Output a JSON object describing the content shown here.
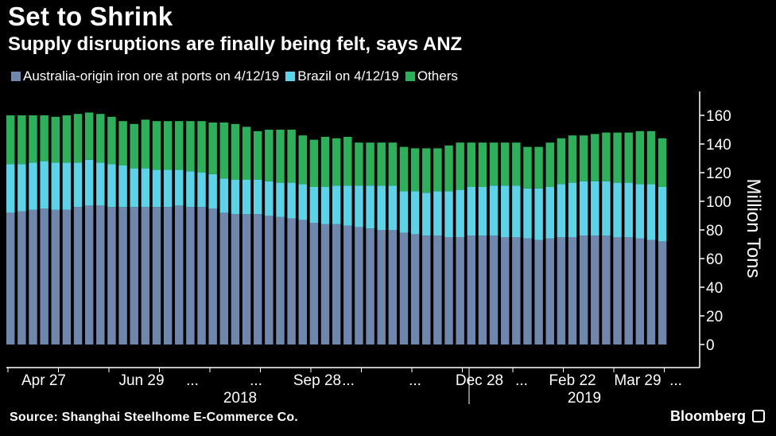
{
  "chart_data": {
    "type": "bar",
    "stacked": true,
    "title": "Set to Shrink",
    "subtitle": "Supply disruptions are finally being felt, says ANZ",
    "ylabel": "Million Tons",
    "ylim": [
      -15,
      170
    ],
    "yticks": [
      0,
      20,
      40,
      60,
      80,
      100,
      120,
      140,
      160
    ],
    "series": [
      {
        "name": "Australia-origin iron ore at ports on 4/12/19",
        "color": "#6f87ad",
        "values": [
          92,
          93,
          94,
          95,
          94,
          94,
          96,
          97,
          97,
          96,
          96,
          96,
          96,
          96,
          96,
          97,
          96,
          96,
          95,
          92,
          91,
          91,
          91,
          90,
          89,
          88,
          87,
          85,
          84,
          84,
          83,
          82,
          81,
          80,
          80,
          78,
          77,
          76,
          76,
          75,
          75,
          76,
          76,
          76,
          75,
          75,
          74,
          73,
          74,
          75,
          75,
          76,
          76,
          76,
          75,
          75,
          74,
          73,
          72
        ]
      },
      {
        "name": "Brazil on 4/12/19",
        "color": "#5bd3e8",
        "values": [
          34,
          33,
          33,
          33,
          33,
          33,
          31,
          32,
          30,
          30,
          29,
          27,
          27,
          26,
          26,
          25,
          25,
          24,
          24,
          24,
          24,
          24,
          24,
          24,
          24,
          25,
          25,
          25,
          26,
          27,
          28,
          29,
          30,
          31,
          31,
          29,
          30,
          30,
          31,
          32,
          33,
          34,
          34,
          35,
          36,
          36,
          35,
          36,
          36,
          37,
          38,
          38,
          38,
          38,
          38,
          38,
          38,
          39,
          38
        ]
      },
      {
        "name": "Others",
        "color": "#2db05a",
        "values": [
          34,
          34,
          33,
          32,
          32,
          33,
          34,
          33,
          34,
          33,
          31,
          31,
          34,
          34,
          34,
          34,
          35,
          36,
          36,
          39,
          39,
          37,
          34,
          36,
          37,
          37,
          34,
          33,
          35,
          33,
          34,
          30,
          30,
          30,
          30,
          31,
          30,
          31,
          30,
          32,
          33,
          31,
          31,
          30,
          30,
          30,
          29,
          29,
          31,
          32,
          33,
          32,
          33,
          34,
          35,
          35,
          37,
          37,
          34
        ]
      }
    ],
    "x_tick_labels": [
      "Apr 27",
      "Jun 29",
      "...",
      "...",
      "Sep 28",
      "...",
      "...",
      "Dec 28",
      "...",
      "Feb 22",
      "Mar 29",
      "..."
    ],
    "year_labels": [
      "2018",
      "2019"
    ],
    "legend_position": "top-left"
  },
  "source": "Source: Shanghai Steelhome E-Commerce Co.",
  "brand": "Bloomberg",
  "colors": {
    "background": "#000000",
    "australia": "#6f87ad",
    "brazil": "#5bd3e8",
    "others": "#2db05a",
    "axis": "#ffffff"
  }
}
